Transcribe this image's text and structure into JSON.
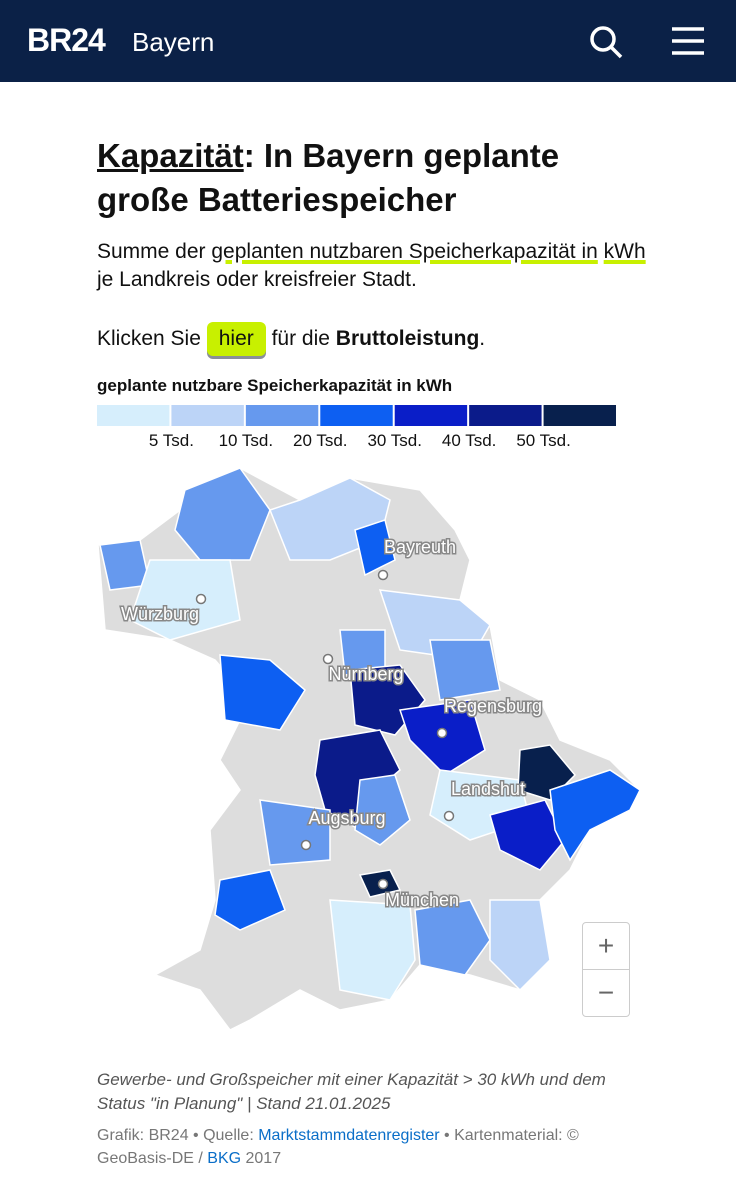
{
  "header": {
    "brand": "BR24",
    "region": "Bayern"
  },
  "article": {
    "title_link": "Kapazität",
    "title_rest": ": In Bayern geplante große Batteriespeicher",
    "subtitle_start": "Summe der ",
    "subtitle_highlight_1": "geplanten nutzbaren Speicherkapazität in",
    "subtitle_highlight_2": "kWh",
    "subtitle_end": " je Landkreis oder kreisfreier Stadt.",
    "click_start": "Klicken Sie ",
    "click_button": "hier",
    "click_mid": " für die ",
    "click_bold": "Bruttoleistung",
    "click_end": "."
  },
  "legend": {
    "title": "geplante nutzbare Speicherkapazität in kWh",
    "colors": [
      "#d6eefc",
      "#bcd4f7",
      "#6699ee",
      "#0d5ff2",
      "#0a1ec8",
      "#0b1b8a",
      "#08204d"
    ],
    "labels": [
      "5 Tsd.",
      "10 Tsd.",
      "20 Tsd.",
      "30 Tsd.",
      "40 Tsd.",
      "50 Tsd."
    ]
  },
  "map": {
    "cities": [
      "Bayreuth",
      "Würzburg",
      "Nürnberg",
      "Regensburg",
      "Landshut",
      "Augsburg",
      "München"
    ],
    "zoom_in": "+",
    "zoom_out": "−"
  },
  "footer": {
    "note": "Gewerbe- und Großspeicher mit einer Kapazität > 30 kWh und dem Status \"in Planung\" | Stand 21.01.2025",
    "credit_1": "Grafik: BR24 • Quelle: ",
    "credit_link_1": "Marktstammdatenregister",
    "credit_2": " • Kartenmaterial: © GeoBasis-DE / ",
    "credit_link_2": "BKG",
    "credit_3": " 2017"
  }
}
